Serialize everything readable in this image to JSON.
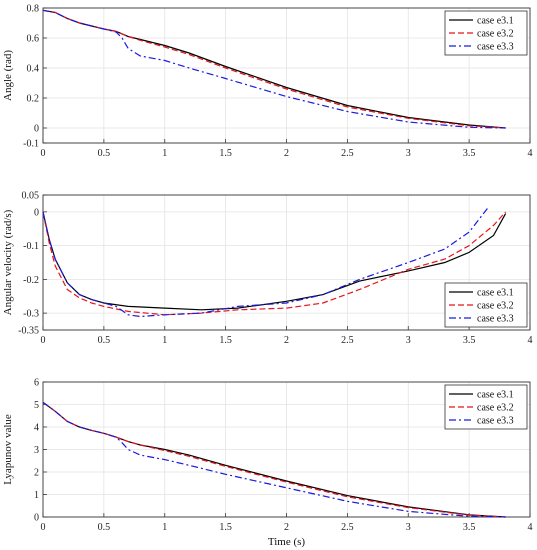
{
  "chart_data": [
    {
      "type": "line",
      "ylabel": "Angle (rad)",
      "xlabel": "",
      "xlim": [
        0,
        4
      ],
      "ylim": [
        -0.1,
        0.8
      ],
      "xticks": [
        "0",
        "0.5",
        "1",
        "1.5",
        "2",
        "2.5",
        "3",
        "3.5",
        "4"
      ],
      "yticks": [
        "-0.1",
        "0",
        "0.2",
        "0.4",
        "0.6",
        "0.8"
      ],
      "grid": true,
      "legend": "top-right",
      "series": [
        {
          "name": "case e3.1",
          "color": "#000000",
          "dash": "solid",
          "x": [
            0,
            0.1,
            0.2,
            0.3,
            0.4,
            0.5,
            0.6,
            0.7,
            0.8,
            1.0,
            1.2,
            1.5,
            2.0,
            2.5,
            3.0,
            3.5,
            3.8
          ],
          "y": [
            0.785,
            0.77,
            0.73,
            0.7,
            0.68,
            0.66,
            0.645,
            0.61,
            0.59,
            0.55,
            0.5,
            0.41,
            0.27,
            0.15,
            0.07,
            0.02,
            0.0
          ]
        },
        {
          "name": "case e3.2",
          "color": "#e8141c",
          "dash": "dashed",
          "x": [
            0,
            0.1,
            0.2,
            0.3,
            0.4,
            0.5,
            0.6,
            0.7,
            0.8,
            1.0,
            1.2,
            1.5,
            2.0,
            2.5,
            3.0,
            3.5,
            3.8
          ],
          "y": [
            0.785,
            0.77,
            0.73,
            0.7,
            0.68,
            0.66,
            0.645,
            0.61,
            0.585,
            0.54,
            0.49,
            0.4,
            0.26,
            0.14,
            0.065,
            0.015,
            0.0
          ]
        },
        {
          "name": "case e3.3",
          "color": "#1a1ae0",
          "dash": "dashdot",
          "x": [
            0,
            0.1,
            0.2,
            0.3,
            0.4,
            0.5,
            0.6,
            0.65,
            0.7,
            0.8,
            1.0,
            1.2,
            1.5,
            2.0,
            2.5,
            3.0,
            3.5,
            3.8
          ],
          "y": [
            0.785,
            0.77,
            0.73,
            0.7,
            0.68,
            0.66,
            0.64,
            0.6,
            0.53,
            0.48,
            0.45,
            0.4,
            0.33,
            0.21,
            0.11,
            0.04,
            0.005,
            0.0
          ]
        }
      ]
    },
    {
      "type": "line",
      "ylabel": "Angular velocity (rad/s)",
      "xlabel": "",
      "xlim": [
        0,
        4
      ],
      "ylim": [
        -0.35,
        0.05
      ],
      "xticks": [
        "0",
        "0.5",
        "1",
        "1.5",
        "2",
        "2.5",
        "3",
        "3.5",
        "4"
      ],
      "yticks": [
        "-0.35",
        "-0.3",
        "-0.2",
        "-0.1",
        "0",
        "0.05"
      ],
      "grid": true,
      "legend": "bottom-right",
      "series": [
        {
          "name": "case e3.1",
          "color": "#000000",
          "dash": "solid",
          "x": [
            0,
            0.05,
            0.1,
            0.2,
            0.3,
            0.4,
            0.5,
            0.7,
            1.0,
            1.3,
            1.6,
            2.0,
            2.3,
            2.6,
            3.0,
            3.3,
            3.5,
            3.7,
            3.8
          ],
          "y": [
            0.0,
            -0.08,
            -0.14,
            -0.21,
            -0.245,
            -0.26,
            -0.27,
            -0.28,
            -0.285,
            -0.29,
            -0.285,
            -0.265,
            -0.245,
            -0.205,
            -0.175,
            -0.15,
            -0.12,
            -0.07,
            -0.005
          ]
        },
        {
          "name": "case e3.2",
          "color": "#e8141c",
          "dash": "dashed",
          "x": [
            0,
            0.05,
            0.1,
            0.2,
            0.3,
            0.4,
            0.5,
            0.7,
            1.0,
            1.3,
            1.6,
            2.0,
            2.3,
            2.6,
            3.0,
            3.3,
            3.5,
            3.7,
            3.8
          ],
          "y": [
            0.0,
            -0.09,
            -0.16,
            -0.23,
            -0.255,
            -0.27,
            -0.28,
            -0.295,
            -0.305,
            -0.3,
            -0.29,
            -0.285,
            -0.27,
            -0.23,
            -0.17,
            -0.14,
            -0.1,
            -0.04,
            0.0
          ]
        },
        {
          "name": "case e3.3",
          "color": "#1a1ae0",
          "dash": "dashdot",
          "x": [
            0,
            0.05,
            0.1,
            0.2,
            0.3,
            0.4,
            0.5,
            0.6,
            0.7,
            0.8,
            1.0,
            1.3,
            1.6,
            2.0,
            2.3,
            2.6,
            3.0,
            3.3,
            3.5,
            3.65
          ],
          "y": [
            0.0,
            -0.08,
            -0.14,
            -0.21,
            -0.245,
            -0.26,
            -0.27,
            -0.28,
            -0.305,
            -0.31,
            -0.305,
            -0.3,
            -0.28,
            -0.27,
            -0.245,
            -0.2,
            -0.15,
            -0.11,
            -0.06,
            0.01
          ]
        }
      ]
    },
    {
      "type": "line",
      "ylabel": "Lyapunov value",
      "xlabel": "Time (s)",
      "xlim": [
        0,
        4
      ],
      "ylim": [
        0,
        6
      ],
      "xticks": [
        "0",
        "0.5",
        "1",
        "1.5",
        "2",
        "2.5",
        "3",
        "3.5",
        "4"
      ],
      "yticks": [
        "0",
        "1",
        "2",
        "3",
        "4",
        "5",
        "6"
      ],
      "grid": true,
      "legend": "top-right",
      "series": [
        {
          "name": "case e3.1",
          "color": "#000000",
          "dash": "solid",
          "x": [
            0,
            0.1,
            0.2,
            0.3,
            0.4,
            0.5,
            0.6,
            0.7,
            0.8,
            1.0,
            1.2,
            1.5,
            2.0,
            2.5,
            3.0,
            3.5,
            3.8
          ],
          "y": [
            5.1,
            4.7,
            4.25,
            4.0,
            3.85,
            3.72,
            3.55,
            3.35,
            3.2,
            3.0,
            2.75,
            2.3,
            1.6,
            0.95,
            0.45,
            0.1,
            0.0
          ]
        },
        {
          "name": "case e3.2",
          "color": "#e8141c",
          "dash": "dashed",
          "x": [
            0,
            0.1,
            0.2,
            0.3,
            0.4,
            0.5,
            0.6,
            0.7,
            0.8,
            1.0,
            1.2,
            1.5,
            2.0,
            2.5,
            3.0,
            3.5,
            3.8
          ],
          "y": [
            5.1,
            4.7,
            4.25,
            4.0,
            3.85,
            3.72,
            3.55,
            3.35,
            3.2,
            2.95,
            2.7,
            2.25,
            1.55,
            0.9,
            0.42,
            0.08,
            0.0
          ]
        },
        {
          "name": "case e3.3",
          "color": "#1a1ae0",
          "dash": "dashdot",
          "x": [
            0,
            0.1,
            0.2,
            0.3,
            0.4,
            0.5,
            0.6,
            0.65,
            0.7,
            0.8,
            1.0,
            1.2,
            1.5,
            2.0,
            2.5,
            3.0,
            3.5,
            3.8
          ],
          "y": [
            5.1,
            4.7,
            4.25,
            4.0,
            3.85,
            3.72,
            3.55,
            3.3,
            3.0,
            2.75,
            2.55,
            2.3,
            1.9,
            1.3,
            0.7,
            0.25,
            0.03,
            0.0
          ]
        }
      ]
    }
  ]
}
